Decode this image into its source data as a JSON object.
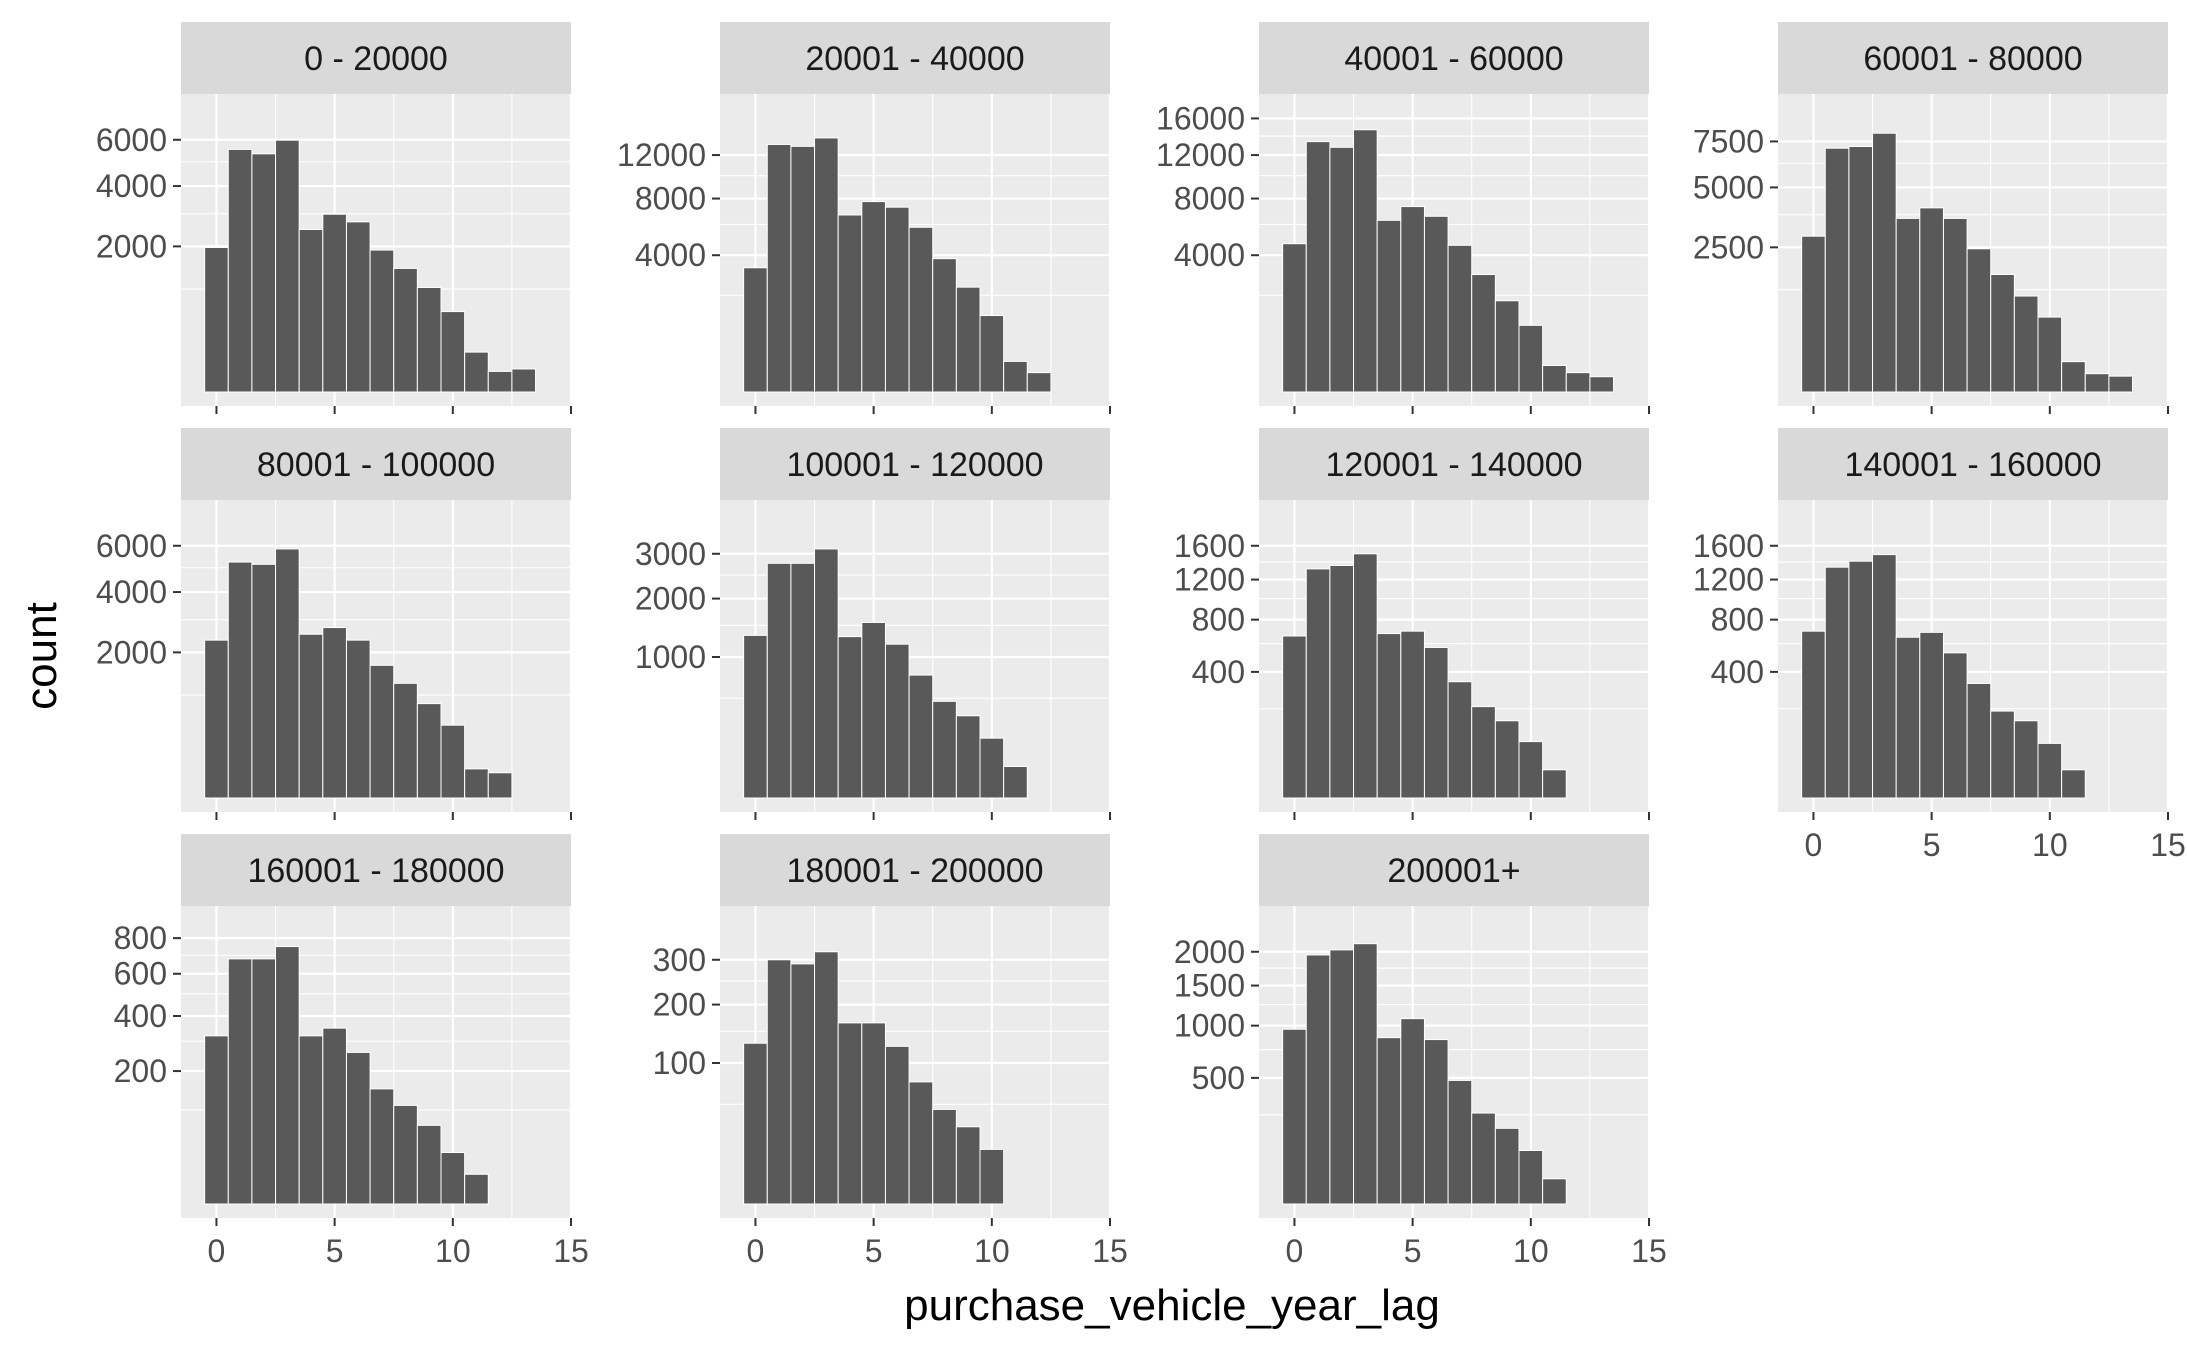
{
  "chart_data": {
    "type": "bar",
    "xlabel": "purchase_vehicle_year_lag",
    "ylabel": "count",
    "x_ticks": [
      0,
      5,
      10,
      15
    ],
    "xlim": [
      -1.5,
      15
    ],
    "y_scale": "sqrt",
    "colors": {
      "bar": "#595959",
      "panel": "#ebebeb",
      "strip": "#d9d9d9",
      "grid": "#ffffff"
    },
    "panels": [
      {
        "label": "0 - 20000",
        "y_ticks": [
          2000,
          4000,
          6000
        ],
        "ymax": 7500,
        "values": [
          1970,
          5550,
          5350,
          5980,
          2490,
          2980,
          2730,
          1900,
          1440,
          1030,
          610,
          150,
          40,
          50
        ]
      },
      {
        "label": "20001 - 40000",
        "y_ticks": [
          4000,
          8000,
          12000
        ],
        "ymax": 17000,
        "values": [
          3300,
          13100,
          12900,
          13800,
          6700,
          7750,
          7300,
          5800,
          3800,
          2350,
          1250,
          200,
          80
        ]
      },
      {
        "label": "40001 - 60000",
        "y_ticks": [
          4000,
          8000,
          12000,
          16000
        ],
        "ymax": 17000,
        "values": [
          4700,
          13400,
          12800,
          14700,
          6300,
          7350,
          6600,
          4600,
          2950,
          1780,
          950,
          150,
          80,
          50
        ]
      },
      {
        "label": "60001 - 80000",
        "y_ticks": [
          2500,
          5000,
          7500
        ],
        "ymax": 9500,
        "values": [
          2900,
          7100,
          7200,
          8000,
          3600,
          4050,
          3600,
          2450,
          1650,
          1100,
          670,
          110,
          40,
          30
        ]
      },
      {
        "label": "80001 - 100000",
        "y_ticks": [
          2000,
          4000,
          6000
        ],
        "ymax": 7500,
        "values": [
          2350,
          5250,
          5150,
          5850,
          2530,
          2740,
          2350,
          1660,
          1240,
          840,
          500,
          80,
          60
        ]
      },
      {
        "label": "100001 - 120000",
        "y_ticks": [
          1000,
          2000,
          3000
        ],
        "ymax": 4000,
        "values": [
          1330,
          2770,
          2770,
          3120,
          1310,
          1550,
          1190,
          760,
          470,
          340,
          180,
          50
        ]
      },
      {
        "label": "120001 - 140000",
        "y_ticks": [
          400,
          800,
          1200,
          1600
        ],
        "ymax": 2000,
        "values": [
          660,
          1320,
          1360,
          1500,
          680,
          700,
          570,
          340,
          210,
          150,
          80,
          20
        ]
      },
      {
        "label": "140001 - 160000",
        "y_ticks": [
          400,
          800,
          1200,
          1600
        ],
        "ymax": 2000,
        "values": [
          700,
          1340,
          1410,
          1490,
          650,
          690,
          530,
          330,
          190,
          150,
          75,
          20
        ]
      },
      {
        "label": "160001 - 180000",
        "y_ticks": [
          200,
          400,
          600,
          800
        ],
        "ymax": 900,
        "values": [
          320,
          680,
          680,
          750,
          320,
          350,
          260,
          150,
          110,
          70,
          30,
          10
        ]
      },
      {
        "label": "180001 - 200000",
        "y_ticks": [
          100,
          200,
          300
        ],
        "ymax": 400,
        "values": [
          130,
          300,
          290,
          320,
          165,
          165,
          125,
          75,
          45,
          30,
          15
        ]
      },
      {
        "label": "200001+",
        "y_ticks": [
          500,
          1000,
          1500,
          2000
        ],
        "ymax": 2500,
        "values": [
          960,
          1950,
          2030,
          2130,
          870,
          1080,
          850,
          480,
          260,
          180,
          90,
          20
        ]
      }
    ]
  }
}
